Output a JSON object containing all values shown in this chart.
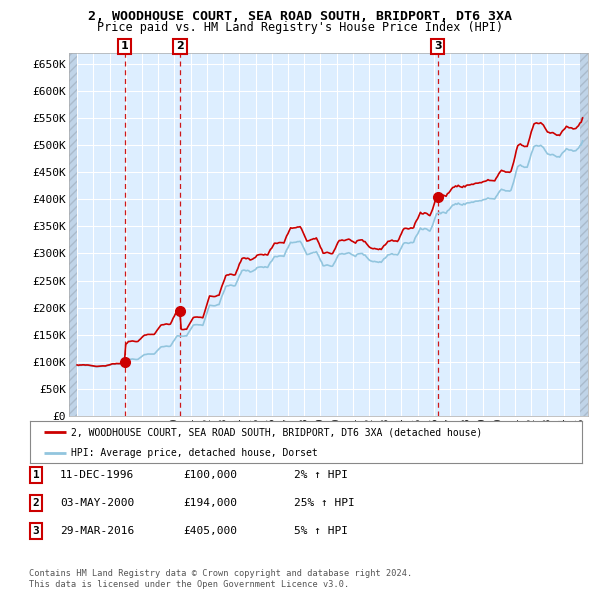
{
  "title_line1": "2, WOODHOUSE COURT, SEA ROAD SOUTH, BRIDPORT, DT6 3XA",
  "title_line2": "Price paid vs. HM Land Registry's House Price Index (HPI)",
  "ylim": [
    0,
    670000
  ],
  "yticks": [
    0,
    50000,
    100000,
    150000,
    200000,
    250000,
    300000,
    350000,
    400000,
    450000,
    500000,
    550000,
    600000,
    650000
  ],
  "ytick_labels": [
    "£0",
    "£50K",
    "£100K",
    "£150K",
    "£200K",
    "£250K",
    "£300K",
    "£350K",
    "£400K",
    "£450K",
    "£500K",
    "£550K",
    "£600K",
    "£650K"
  ],
  "xlim_start": 1993.5,
  "xlim_end": 2025.5,
  "sale_dates": [
    1996.94,
    2000.34,
    2016.24
  ],
  "sale_prices": [
    100000,
    194000,
    405000
  ],
  "sale_labels": [
    "1",
    "2",
    "3"
  ],
  "hpi_color": "#92c5de",
  "sale_color": "#cc0000",
  "legend_sale_label": "2, WOODHOUSE COURT, SEA ROAD SOUTH, BRIDPORT, DT6 3XA (detached house)",
  "legend_hpi_label": "HPI: Average price, detached house, Dorset",
  "table_entries": [
    {
      "num": "1",
      "date": "11-DEC-1996",
      "price": "£100,000",
      "hpi": "2% ↑ HPI"
    },
    {
      "num": "2",
      "date": "03-MAY-2000",
      "price": "£194,000",
      "hpi": "25% ↑ HPI"
    },
    {
      "num": "3",
      "date": "29-MAR-2016",
      "price": "£405,000",
      "hpi": "5% ↑ HPI"
    }
  ],
  "footnote": "Contains HM Land Registry data © Crown copyright and database right 2024.\nThis data is licensed under the Open Government Licence v3.0.",
  "background_color": "#ffffff",
  "plot_bg_color": "#ddeeff",
  "grid_color": "#ffffff",
  "hatch_area_color": "#c0d4e8"
}
